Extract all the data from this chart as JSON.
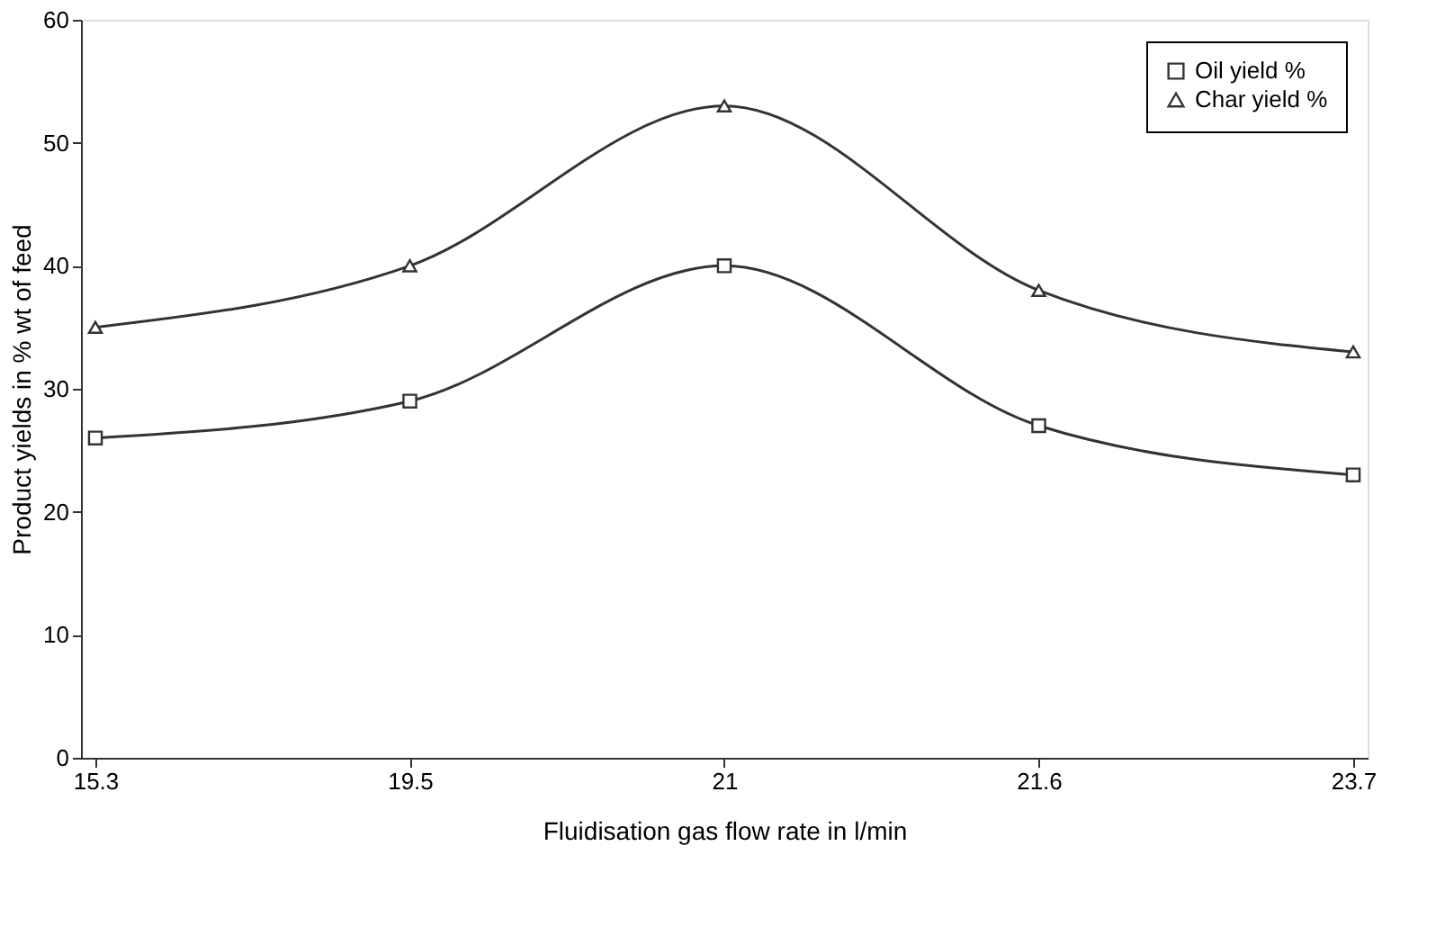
{
  "chart_data": {
    "type": "line",
    "xlabel": "Fluidisation gas flow rate in l/min",
    "ylabel": "Product yields in % wt of feed",
    "categories": [
      "15.3",
      "19.5",
      "21",
      "21.6",
      "23.7"
    ],
    "series": [
      {
        "name": "Oil yield %",
        "color": "#333333",
        "marker": "square",
        "values": [
          26,
          29,
          40,
          27,
          23
        ]
      },
      {
        "name": "Char yield %",
        "color": "#333333",
        "marker": "triangle",
        "values": [
          35,
          40,
          53,
          38,
          33
        ]
      }
    ],
    "ylim": [
      0,
      60
    ],
    "yticks": [
      0,
      10,
      20,
      30,
      40,
      50,
      60
    ],
    "grid": false,
    "legend": "top right",
    "line_style": "solid"
  }
}
